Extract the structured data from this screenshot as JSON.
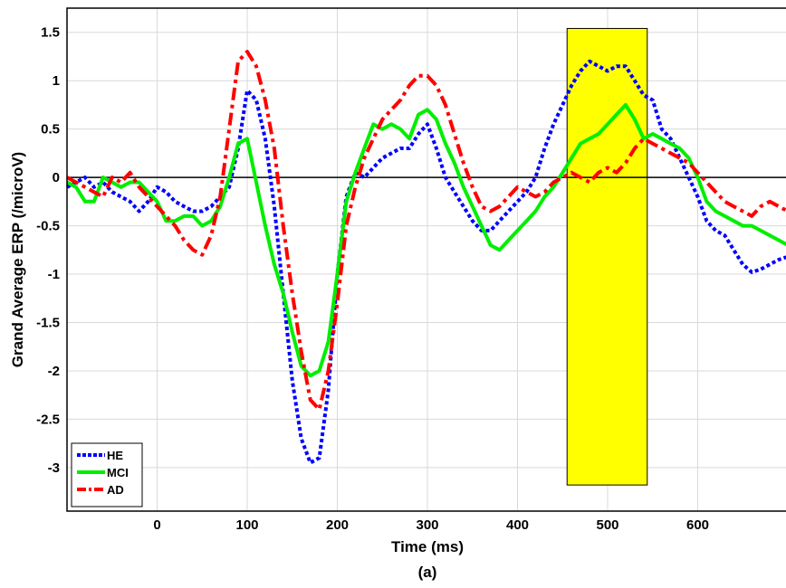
{
  "chart_data": {
    "type": "line",
    "xlabel": "Time (ms)",
    "ylabel": "Grand Average ERP (/microV)",
    "caption": "(a)",
    "xlim": [
      -100,
      700
    ],
    "ylim": [
      -3.45,
      1.75
    ],
    "xticks": [
      0,
      100,
      200,
      300,
      400,
      500,
      600
    ],
    "yticks": [
      1.5,
      1,
      0.5,
      0,
      -0.5,
      -1,
      -1.5,
      -2,
      -2.5,
      -3
    ],
    "ytick_labels": [
      "1.5",
      "1",
      "0.5",
      "0",
      "-0.5",
      "-1",
      "-1.5",
      "-2",
      "-2.5",
      "-3"
    ],
    "grid": true,
    "legend_position": "bottom-left",
    "highlight_window": {
      "x": [
        455,
        544
      ],
      "y": [
        -3.18,
        1.54
      ],
      "color": "#ffff00"
    },
    "series": [
      {
        "name": "HE",
        "color": "#0000ff",
        "style": "dotted",
        "x": [
          -100,
          -90,
          -80,
          -70,
          -60,
          -50,
          -40,
          -30,
          -20,
          -10,
          0,
          10,
          20,
          30,
          40,
          50,
          60,
          70,
          80,
          90,
          100,
          110,
          120,
          130,
          140,
          150,
          160,
          170,
          180,
          190,
          200,
          210,
          220,
          230,
          240,
          250,
          260,
          270,
          280,
          290,
          300,
          310,
          320,
          330,
          340,
          350,
          360,
          370,
          380,
          390,
          400,
          410,
          420,
          430,
          440,
          450,
          460,
          470,
          480,
          490,
          500,
          510,
          520,
          530,
          540,
          550,
          560,
          570,
          580,
          590,
          600,
          610,
          620,
          630,
          640,
          650,
          660,
          670,
          680,
          690,
          700
        ],
        "values": [
          -0.1,
          -0.05,
          0,
          -0.1,
          -0.05,
          -0.15,
          -0.2,
          -0.25,
          -0.35,
          -0.25,
          -0.1,
          -0.15,
          -0.25,
          -0.3,
          -0.35,
          -0.35,
          -0.3,
          -0.2,
          -0.1,
          0.3,
          0.9,
          0.8,
          0.4,
          -0.3,
          -1.2,
          -2.1,
          -2.7,
          -2.95,
          -2.9,
          -2.2,
          -1.0,
          -0.2,
          0.05,
          0.0,
          0.1,
          0.2,
          0.25,
          0.3,
          0.3,
          0.45,
          0.55,
          0.3,
          0.0,
          -0.15,
          -0.3,
          -0.45,
          -0.55,
          -0.55,
          -0.45,
          -0.35,
          -0.25,
          -0.15,
          0.0,
          0.3,
          0.55,
          0.75,
          0.95,
          1.1,
          1.2,
          1.15,
          1.1,
          1.15,
          1.15,
          1.0,
          0.85,
          0.8,
          0.5,
          0.4,
          0.2,
          0.0,
          -0.2,
          -0.45,
          -0.55,
          -0.6,
          -0.75,
          -0.9,
          -0.98,
          -0.95,
          -0.9,
          -0.85,
          -0.82
        ]
      },
      {
        "name": "MCI",
        "color": "#00ee00",
        "style": "solid",
        "x": [
          -100,
          -90,
          -80,
          -70,
          -60,
          -50,
          -40,
          -30,
          -20,
          -10,
          0,
          10,
          20,
          30,
          40,
          50,
          60,
          70,
          80,
          90,
          100,
          110,
          120,
          130,
          140,
          150,
          160,
          170,
          180,
          190,
          200,
          210,
          220,
          230,
          240,
          250,
          260,
          270,
          280,
          290,
          300,
          310,
          320,
          330,
          340,
          350,
          360,
          370,
          380,
          390,
          400,
          410,
          420,
          430,
          440,
          450,
          460,
          470,
          480,
          490,
          500,
          510,
          520,
          530,
          540,
          550,
          560,
          570,
          580,
          590,
          600,
          610,
          620,
          630,
          640,
          650,
          660,
          670,
          680,
          690,
          700
        ],
        "values": [
          -0.05,
          -0.1,
          -0.25,
          -0.25,
          0.0,
          -0.05,
          -0.1,
          -0.05,
          -0.05,
          -0.15,
          -0.25,
          -0.45,
          -0.45,
          -0.4,
          -0.4,
          -0.5,
          -0.45,
          -0.3,
          0.0,
          0.35,
          0.4,
          -0.05,
          -0.5,
          -0.9,
          -1.2,
          -1.6,
          -1.95,
          -2.05,
          -2.0,
          -1.7,
          -1.0,
          -0.25,
          0.05,
          0.3,
          0.55,
          0.5,
          0.55,
          0.5,
          0.4,
          0.65,
          0.7,
          0.6,
          0.35,
          0.15,
          -0.1,
          -0.3,
          -0.5,
          -0.7,
          -0.75,
          -0.65,
          -0.55,
          -0.45,
          -0.35,
          -0.2,
          -0.1,
          0.05,
          0.2,
          0.35,
          0.4,
          0.45,
          0.55,
          0.65,
          0.75,
          0.6,
          0.4,
          0.45,
          0.4,
          0.35,
          0.3,
          0.2,
          0.0,
          -0.25,
          -0.35,
          -0.4,
          -0.45,
          -0.5,
          -0.5,
          -0.55,
          -0.6,
          -0.65,
          -0.7
        ]
      },
      {
        "name": "AD",
        "color": "#ff0000",
        "style": "dashdot",
        "x": [
          -100,
          -90,
          -80,
          -70,
          -60,
          -50,
          -40,
          -30,
          -20,
          -10,
          0,
          10,
          20,
          30,
          40,
          50,
          60,
          70,
          80,
          90,
          100,
          110,
          120,
          130,
          140,
          150,
          160,
          170,
          180,
          190,
          200,
          210,
          220,
          230,
          240,
          250,
          260,
          270,
          280,
          290,
          300,
          310,
          320,
          330,
          340,
          350,
          360,
          370,
          380,
          390,
          400,
          410,
          420,
          430,
          440,
          450,
          460,
          470,
          480,
          490,
          500,
          510,
          520,
          530,
          540,
          550,
          560,
          570,
          580,
          590,
          600,
          610,
          620,
          630,
          640,
          650,
          660,
          670,
          680,
          690,
          700
        ],
        "values": [
          0.0,
          -0.05,
          -0.1,
          -0.15,
          -0.2,
          0.0,
          -0.05,
          0.05,
          -0.1,
          -0.2,
          -0.3,
          -0.4,
          -0.5,
          -0.65,
          -0.75,
          -0.8,
          -0.6,
          -0.2,
          0.5,
          1.2,
          1.3,
          1.15,
          0.8,
          0.3,
          -0.5,
          -1.2,
          -1.8,
          -2.3,
          -2.4,
          -2.0,
          -1.3,
          -0.5,
          -0.1,
          0.2,
          0.4,
          0.6,
          0.7,
          0.8,
          0.95,
          1.05,
          1.05,
          0.95,
          0.75,
          0.45,
          0.15,
          -0.1,
          -0.3,
          -0.35,
          -0.3,
          -0.2,
          -0.1,
          -0.15,
          -0.2,
          -0.15,
          -0.05,
          0.0,
          0.05,
          0.0,
          -0.05,
          0.05,
          0.1,
          0.05,
          0.15,
          0.3,
          0.4,
          0.35,
          0.3,
          0.25,
          0.2,
          0.15,
          0.05,
          -0.05,
          -0.15,
          -0.25,
          -0.3,
          -0.35,
          -0.4,
          -0.3,
          -0.25,
          -0.3,
          -0.35
        ]
      }
    ]
  }
}
